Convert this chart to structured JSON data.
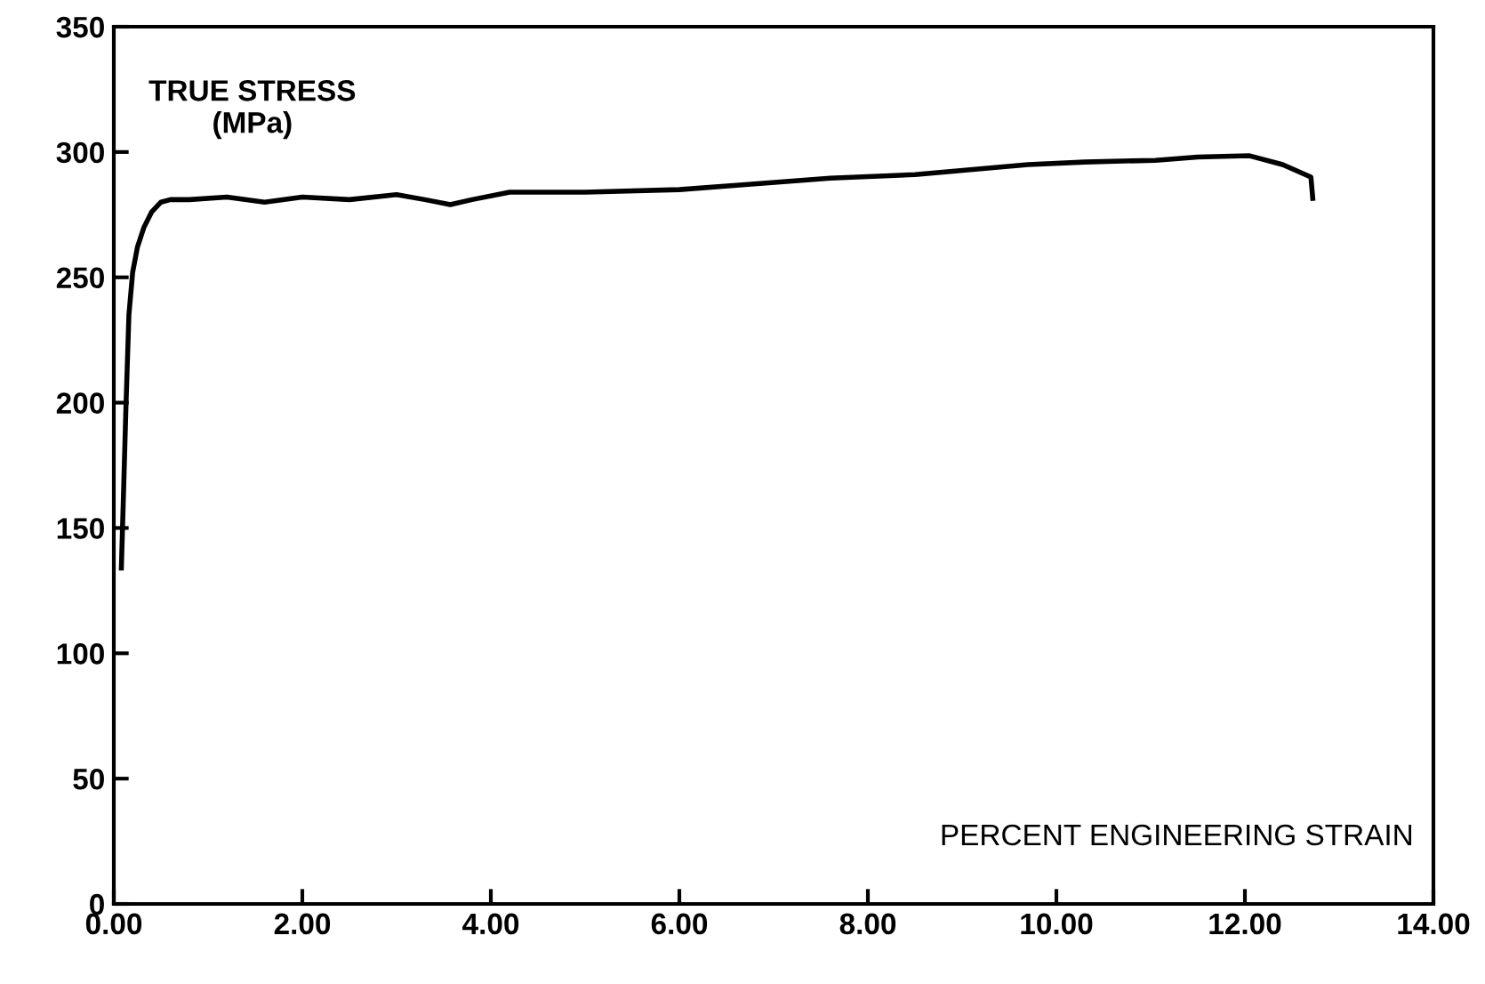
{
  "chart_data": {
    "type": "line",
    "xlabel": "PERCENT ENGINEERING STRAIN",
    "ylabel": "TRUE STRESS\n(MPa)",
    "x": [
      0.08,
      0.1,
      0.13,
      0.16,
      0.2,
      0.25,
      0.32,
      0.4,
      0.5,
      0.6,
      0.8,
      1.2,
      1.6,
      2.0,
      2.5,
      3.0,
      3.3,
      3.57,
      3.8,
      4.2,
      5.0,
      6.0,
      6.7,
      7.6,
      8.5,
      9.7,
      10.3,
      11.05,
      11.5,
      12.05,
      12.4,
      12.7,
      12.72
    ],
    "series": [
      {
        "color": "#000000",
        "values": [
          134,
          160,
          200,
          235,
          252,
          262,
          270,
          276,
          280,
          281,
          281,
          282,
          280,
          282,
          281,
          283,
          281,
          279,
          281,
          284,
          284,
          285,
          287,
          289.6,
          291,
          295,
          296,
          296.7,
          298,
          298.5,
          295,
          290,
          281.5
        ]
      }
    ],
    "xlim": [
      0,
      14
    ],
    "ylim": [
      0,
      350
    ],
    "xticks": [
      {
        "value": 0,
        "label": "0.00"
      },
      {
        "value": 2,
        "label": "2.00"
      },
      {
        "value": 4,
        "label": "4.00"
      },
      {
        "value": 6,
        "label": "6.00"
      },
      {
        "value": 8,
        "label": "8.00"
      },
      {
        "value": 10,
        "label": "10.00"
      },
      {
        "value": 12,
        "label": "12.00"
      },
      {
        "value": 14,
        "label": "14.00"
      }
    ],
    "yticks": [
      0,
      50,
      100,
      150,
      200,
      250,
      300,
      350
    ],
    "grid": false,
    "marker": "none",
    "line_style": "solid"
  }
}
